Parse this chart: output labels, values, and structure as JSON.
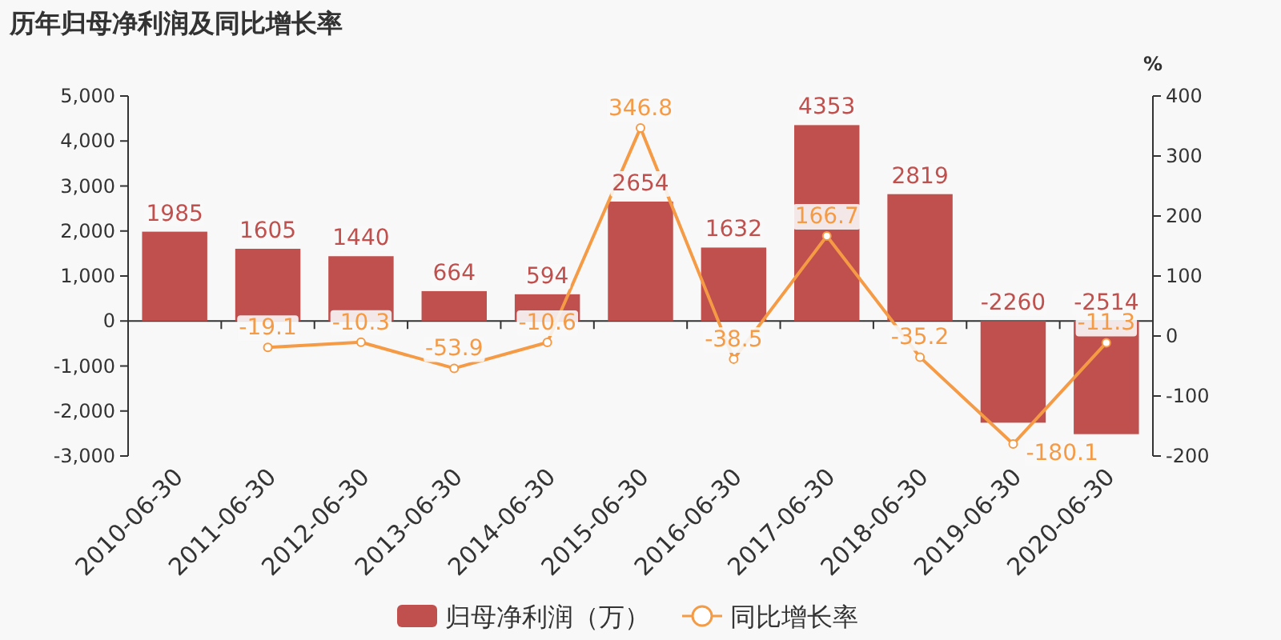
{
  "chart_data": {
    "type": "bar",
    "title": "历年归母净利润及同比增长率",
    "y2label": "%",
    "categories": [
      "2010-06-30",
      "2011-06-30",
      "2012-06-30",
      "2013-06-30",
      "2014-06-30",
      "2015-06-30",
      "2016-06-30",
      "2017-06-30",
      "2018-06-30",
      "2019-06-30",
      "2020-06-30"
    ],
    "series": [
      {
        "name": "归母净利润（万）",
        "color": "#c0504d",
        "values": [
          1985,
          1605,
          1440,
          664,
          594,
          2654,
          1632,
          4353,
          2819,
          -2260,
          -2514
        ]
      },
      {
        "name": "同比增长率",
        "type": "line",
        "axis": "y2",
        "color": "#f59a45",
        "values": [
          null,
          -19.1,
          -10.3,
          -53.9,
          -10.6,
          346.8,
          -38.5,
          166.7,
          -35.2,
          -180.1,
          -11.3
        ]
      }
    ],
    "ylim": [
      -3000,
      5000
    ],
    "yticks": [
      {
        "value": -3000,
        "label": "-3,000"
      },
      {
        "value": -2000,
        "label": "-2,000"
      },
      {
        "value": -1000,
        "label": "-1,000"
      },
      0,
      {
        "value": 1000,
        "label": "1,000"
      },
      {
        "value": 2000,
        "label": "2,000"
      },
      {
        "value": 3000,
        "label": "3,000"
      },
      {
        "value": 4000,
        "label": "4,000"
      },
      {
        "value": 5000,
        "label": "5,000"
      }
    ],
    "y2lim": [
      -200,
      400
    ],
    "y2ticks": [
      -200,
      -100,
      0,
      100,
      200,
      300,
      400
    ],
    "data_labels": true,
    "legend": "bottom",
    "marker": "circle"
  }
}
